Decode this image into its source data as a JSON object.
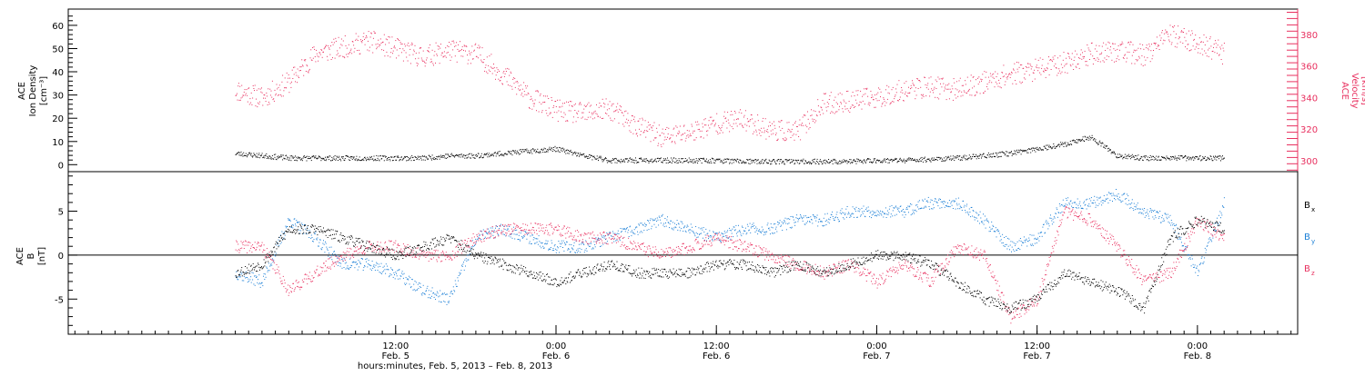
{
  "chart_data": [
    {
      "type": "scatter",
      "panel": "top",
      "ylabel_lines": [
        "ACE",
        "Ion Density",
        "[cm⁻³]"
      ],
      "y2label_lines": [
        "ACE",
        "Velocity",
        "[km/s]"
      ],
      "ylim": [
        -3,
        67
      ],
      "yticks": [
        0,
        10,
        20,
        30,
        40,
        50,
        60
      ],
      "y2lim": [
        293,
        396
      ],
      "y2ticks": [
        300,
        320,
        340,
        360,
        380
      ],
      "grid": false,
      "colors": {
        "density": "#000000",
        "velocity": "#e8305f"
      },
      "series": [
        {
          "key": "density",
          "axis": "left",
          "color": "#000000",
          "x": [
            0,
            2,
            4,
            6,
            8,
            10,
            12,
            14,
            16,
            18,
            20,
            22,
            24,
            26,
            28,
            30,
            32,
            34,
            36,
            38,
            40,
            42,
            44,
            46,
            48,
            50,
            52,
            54,
            56,
            58,
            60,
            62,
            64,
            66,
            68,
            70,
            72,
            74
          ],
          "values": [
            5,
            4,
            3,
            3,
            3,
            3,
            3,
            3,
            4,
            4,
            5,
            6,
            7,
            4,
            2,
            2,
            2,
            2,
            2,
            1.5,
            1.5,
            1.5,
            1.5,
            1.5,
            2,
            2,
            2.5,
            3,
            4,
            5,
            7,
            9,
            12,
            4,
            3,
            3,
            3,
            3
          ]
        },
        {
          "key": "velocity",
          "axis": "right",
          "color": "#e8305f",
          "x": [
            0,
            2,
            4,
            6,
            8,
            10,
            12,
            14,
            16,
            18,
            20,
            22,
            24,
            26,
            28,
            30,
            32,
            34,
            36,
            38,
            40,
            42,
            44,
            46,
            48,
            50,
            52,
            54,
            56,
            58,
            60,
            62,
            64,
            66,
            68,
            70,
            72,
            74
          ],
          "values": [
            345,
            340,
            350,
            368,
            372,
            376,
            371,
            366,
            370,
            368,
            355,
            340,
            332,
            330,
            333,
            322,
            315,
            318,
            324,
            326,
            320,
            318,
            336,
            338,
            340,
            345,
            347,
            345,
            350,
            355,
            358,
            362,
            368,
            370,
            367,
            380,
            375,
            368
          ]
        }
      ]
    },
    {
      "type": "scatter",
      "panel": "bottom",
      "ylabel_lines": [
        "ACE",
        "B",
        "[nT]"
      ],
      "ylim": [
        -9,
        9.5
      ],
      "yticks": [
        -5,
        0,
        5
      ],
      "zero_line": true,
      "grid": false,
      "legend": [
        {
          "base": "B",
          "sub": "x",
          "color": "#000000"
        },
        {
          "base": "B",
          "sub": "y",
          "color": "#1b7fd6"
        },
        {
          "base": "B",
          "sub": "z",
          "color": "#e8305f"
        }
      ],
      "legend_position": "right",
      "series": [
        {
          "key": "bx",
          "color": "#000000",
          "x": [
            0,
            2,
            4,
            6,
            8,
            10,
            12,
            14,
            16,
            18,
            20,
            22,
            24,
            26,
            28,
            30,
            32,
            34,
            36,
            38,
            40,
            42,
            44,
            46,
            48,
            50,
            52,
            54,
            56,
            58,
            60,
            62,
            64,
            66,
            68,
            70,
            72,
            74
          ],
          "values": [
            -2,
            -1,
            3,
            3,
            2,
            1,
            0,
            1,
            2,
            0,
            -1,
            -2,
            -3,
            -2,
            -1,
            -2,
            -2,
            -2,
            -1,
            -1,
            -2,
            -1,
            -2,
            -1,
            0,
            0,
            -1,
            -3,
            -5,
            -6,
            -5,
            -2,
            -3,
            -4,
            -6,
            2,
            4,
            3
          ]
        },
        {
          "key": "by",
          "color": "#1b7fd6",
          "x": [
            0,
            2,
            4,
            6,
            8,
            10,
            12,
            14,
            16,
            18,
            20,
            22,
            24,
            26,
            28,
            30,
            32,
            34,
            36,
            38,
            40,
            42,
            44,
            46,
            48,
            50,
            52,
            54,
            56,
            58,
            60,
            62,
            64,
            66,
            68,
            70,
            72,
            74
          ],
          "values": [
            -2,
            -3,
            4,
            2,
            -1,
            -1,
            -2,
            -4,
            -5,
            2,
            3,
            2,
            1,
            1,
            2,
            3,
            4,
            3,
            2,
            3,
            3,
            4,
            4,
            5,
            5,
            5,
            6,
            6,
            4,
            1,
            2,
            6,
            6,
            7,
            5,
            4,
            -2,
            6
          ]
        },
        {
          "key": "bz",
          "color": "#e8305f",
          "x": [
            0,
            2,
            4,
            6,
            8,
            10,
            12,
            14,
            16,
            18,
            20,
            22,
            24,
            26,
            28,
            30,
            32,
            34,
            36,
            38,
            40,
            42,
            44,
            46,
            48,
            50,
            52,
            54,
            56,
            58,
            60,
            62,
            64,
            66,
            68,
            70,
            72,
            74
          ],
          "values": [
            1,
            1,
            -4,
            -2,
            0,
            1,
            1,
            0,
            0,
            2,
            3,
            3,
            3,
            2,
            2,
            1,
            0,
            1,
            2,
            1,
            0,
            -1,
            -2,
            -1,
            -3,
            -1,
            -3,
            1,
            0,
            -7,
            -5,
            5,
            4,
            1,
            -3,
            -2,
            4,
            2
          ]
        }
      ]
    }
  ],
  "time_axis": {
    "label": "hours:minutes, Feb.  5, 2013 – Feb.  8, 2013",
    "range_hours": [
      -12.5,
      79.5
    ],
    "major_ticks": [
      {
        "hour": 12,
        "time": "12:00",
        "date": "Feb. 5"
      },
      {
        "hour": 24,
        "time": "0:00",
        "date": "Feb. 6"
      },
      {
        "hour": 36,
        "time": "12:00",
        "date": "Feb. 6"
      },
      {
        "hour": 48,
        "time": "0:00",
        "date": "Feb. 7"
      },
      {
        "hour": 60,
        "time": "12:00",
        "date": "Feb. 7"
      },
      {
        "hour": 72,
        "time": "0:00",
        "date": "Feb. 8"
      }
    ]
  }
}
